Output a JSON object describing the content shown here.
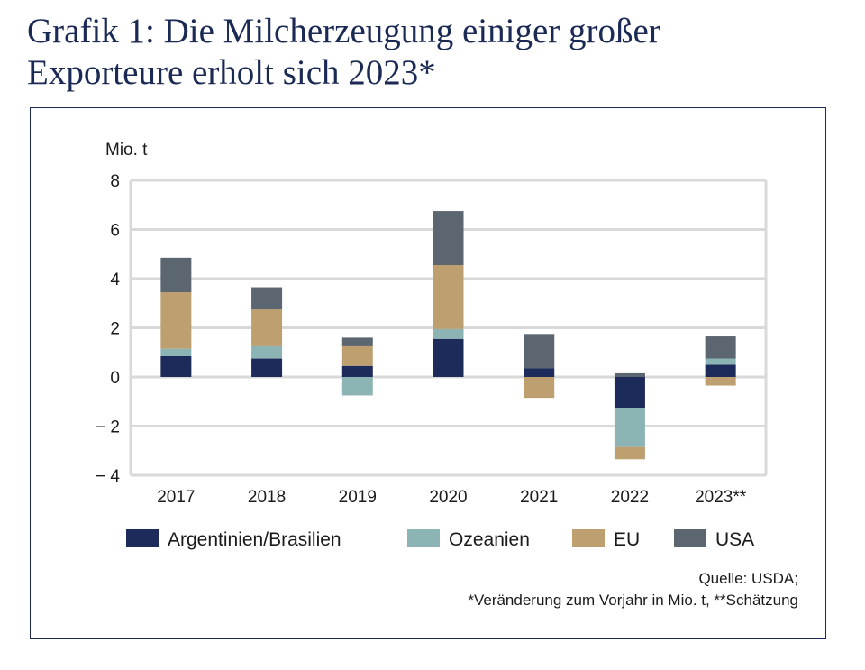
{
  "title_line1": "Grafik 1: Die Milcherzeugung einiger großer",
  "title_line2": "Exporteure erholt sich 2023*",
  "source_line1": "Quelle: USDA;",
  "source_line2": "*Veränderung zum Vorjahr in Mio. t, **Schätzung",
  "colors": {
    "argentinien_brasilien": "#1c2b59",
    "ozeanien": "#8db4b4",
    "eu": "#bd9f70",
    "usa": "#5c6671",
    "grid": "#d9d9d9",
    "frame": "#1b2a55"
  },
  "chart_data": {
    "type": "bar",
    "stacked": true,
    "ylabel": "Mio. t",
    "ylim": [
      -4,
      8
    ],
    "yticks": [
      8,
      6,
      4,
      2,
      0,
      -2,
      -4
    ],
    "ytick_labels": [
      "8",
      "6",
      "4",
      "2",
      "0",
      "− 2",
      "− 4"
    ],
    "categories": [
      "2017",
      "2018",
      "2019",
      "2020",
      "2021",
      "2022",
      "2023**"
    ],
    "series": [
      {
        "name": "Argentinien/Brasilien",
        "color_key": "argentinien_brasilien",
        "values": [
          0.85,
          0.75,
          0.45,
          1.55,
          0.35,
          -1.25,
          0.5
        ]
      },
      {
        "name": "Ozeanien",
        "color_key": "ozeanien",
        "values": [
          0.3,
          0.5,
          -0.75,
          0.4,
          0.0,
          -1.6,
          0.25
        ]
      },
      {
        "name": "EU",
        "color_key": "eu",
        "values": [
          2.3,
          1.5,
          0.8,
          2.6,
          -0.85,
          -0.5,
          -0.35
        ]
      },
      {
        "name": "USA",
        "color_key": "usa",
        "values": [
          1.4,
          0.9,
          0.35,
          2.2,
          1.4,
          0.15,
          0.9
        ]
      }
    ],
    "grid": true,
    "legend_position": "bottom"
  }
}
